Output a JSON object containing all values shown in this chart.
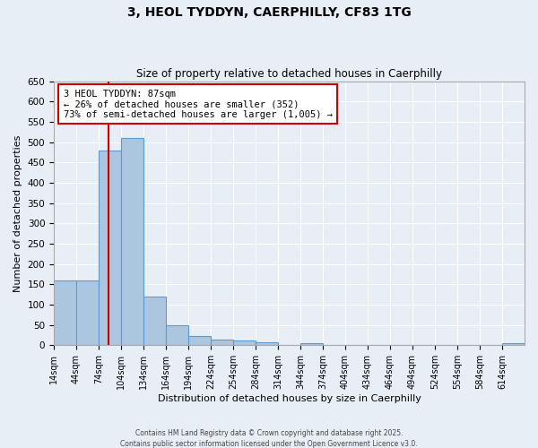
{
  "title": "3, HEOL TYDDYN, CAERPHILLY, CF83 1TG",
  "subtitle": "Size of property relative to detached houses in Caerphilly",
  "xlabel": "Distribution of detached houses by size in Caerphilly",
  "ylabel": "Number of detached properties",
  "annotation_line1": "3 HEOL TYDDYN: 87sqm",
  "annotation_line2": "← 26% of detached houses are smaller (352)",
  "annotation_line3": "73% of semi-detached houses are larger (1,005) →",
  "footer_line1": "Contains HM Land Registry data © Crown copyright and database right 2025.",
  "footer_line2": "Contains public sector information licensed under the Open Government Licence v3.0.",
  "property_size": 87,
  "bin_starts": [
    14,
    44,
    74,
    104,
    134,
    164,
    194,
    224,
    254,
    284,
    314,
    344,
    374,
    404,
    434,
    464,
    494,
    524,
    554,
    584,
    614
  ],
  "bar_values": [
    160,
    160,
    480,
    510,
    120,
    50,
    22,
    15,
    12,
    8,
    0,
    5,
    0,
    0,
    0,
    0,
    0,
    0,
    0,
    0,
    5
  ],
  "bar_color": "#adc6e0",
  "bar_edge_color": "#5b9bd5",
  "vline_color": "#cc0000",
  "annotation_box_color": "#cc0000",
  "background_color": "#e8eef5",
  "ylim": [
    0,
    650
  ],
  "yticks": [
    0,
    50,
    100,
    150,
    200,
    250,
    300,
    350,
    400,
    450,
    500,
    550,
    600,
    650
  ]
}
